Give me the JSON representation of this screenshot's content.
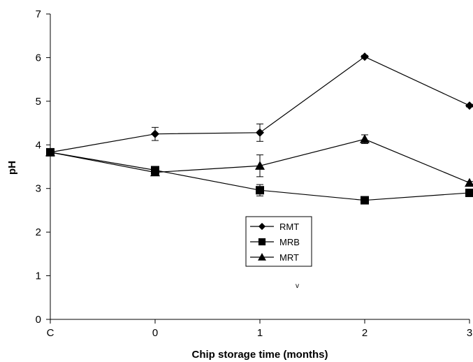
{
  "chart_data": {
    "type": "line",
    "title": "",
    "xlabel": "Chip storage time (months)",
    "ylabel": "pH",
    "categories": [
      "C",
      "0",
      "1",
      "2",
      "3"
    ],
    "ylim": [
      0,
      7
    ],
    "yticks": [
      "0",
      "1",
      "2",
      "3",
      "4",
      "5",
      "6",
      "7"
    ],
    "grid": false,
    "legend_position": "center-bottom",
    "series": [
      {
        "name": "RMT",
        "marker": "diamond",
        "values": [
          3.83,
          4.25,
          4.28,
          6.02,
          4.9
        ],
        "errors": [
          0,
          0.15,
          0.2,
          0.03,
          0.03
        ]
      },
      {
        "name": "MRB",
        "marker": "square",
        "values": [
          3.83,
          3.42,
          2.96,
          2.73,
          2.9
        ],
        "errors": [
          0,
          0.08,
          0.13,
          0.06,
          0.05
        ]
      },
      {
        "name": "MRT",
        "marker": "triangle",
        "values": [
          3.83,
          3.37,
          3.52,
          4.13,
          3.13
        ],
        "errors": [
          0,
          0.05,
          0.25,
          0.1,
          0.03
        ]
      }
    ],
    "annotations": [
      "v"
    ]
  }
}
